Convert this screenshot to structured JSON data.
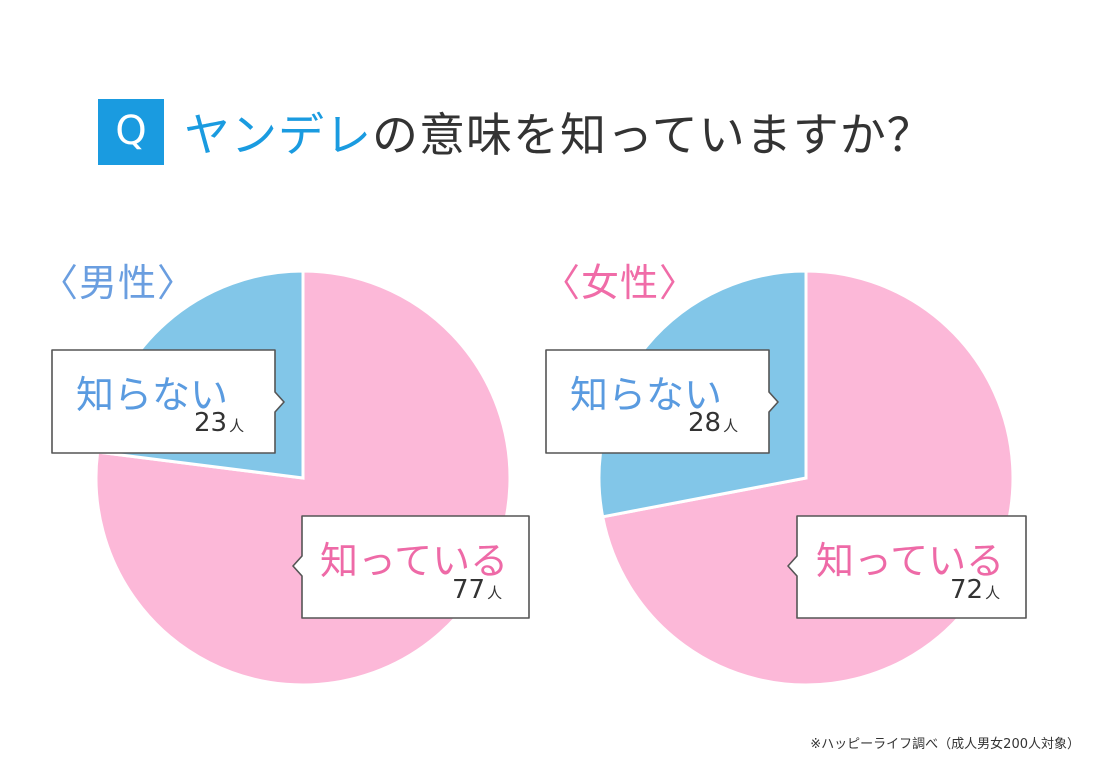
{
  "title": {
    "badge": "Q",
    "accent": "ヤンデレ",
    "rest": "の意味を知っていますか？"
  },
  "colors": {
    "known": "#fcb8d8",
    "unknown": "#82c6e8",
    "accent_blue": "#1a9be0",
    "male_label": "#6a9ee0",
    "female_label": "#f06ca8",
    "unknown_text": "#5a9be0",
    "known_text": "#ee6aa7"
  },
  "chart_data": [
    {
      "type": "pie",
      "title": "〈男性〉",
      "categories": [
        "知っている",
        "知らない"
      ],
      "values": [
        77,
        23
      ],
      "unit": "人",
      "start": "12 o'clock",
      "direction": "clockwise"
    },
    {
      "type": "pie",
      "title": "〈女性〉",
      "categories": [
        "知っている",
        "知らない"
      ],
      "values": [
        72,
        28
      ],
      "unit": "人",
      "start": "12 o'clock",
      "direction": "clockwise"
    }
  ],
  "footnote": "※ハッピーライフ調べ（成人男女200人対象）"
}
